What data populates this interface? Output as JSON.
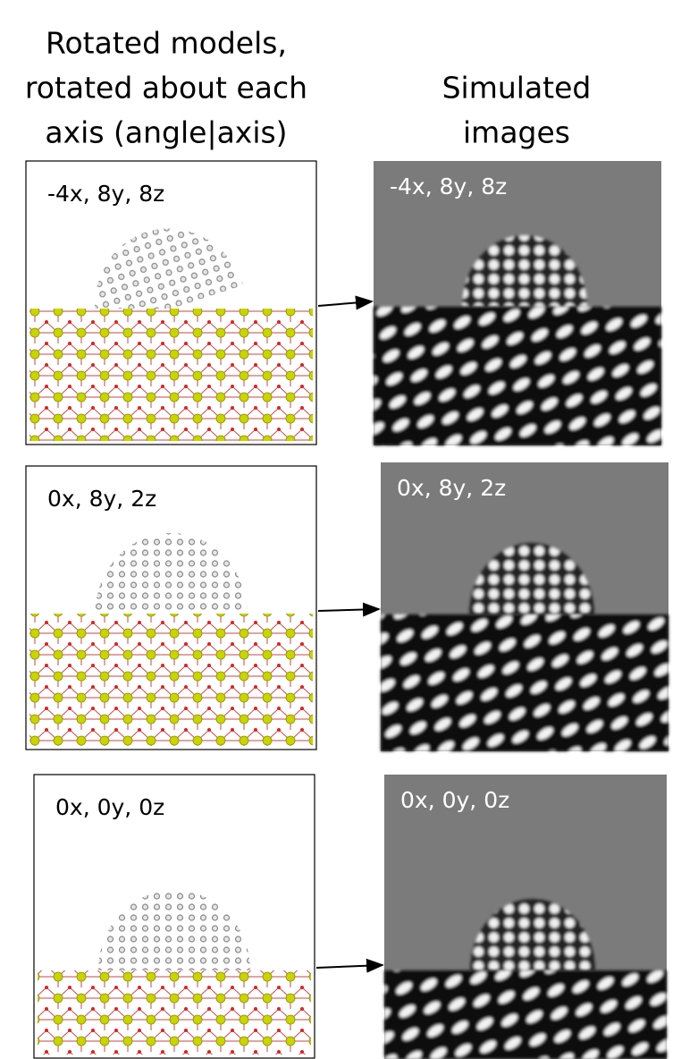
{
  "header": {
    "left_lines": [
      "Rotated models,",
      "rotated about each",
      "axis (angle|axis)"
    ],
    "right_lines": [
      "Simulated",
      "images"
    ]
  },
  "rows": [
    {
      "label": "-4x, 8y, 8z"
    },
    {
      "label": "0x, 8y, 2z"
    },
    {
      "label": "0x, 0y, 0z"
    }
  ]
}
